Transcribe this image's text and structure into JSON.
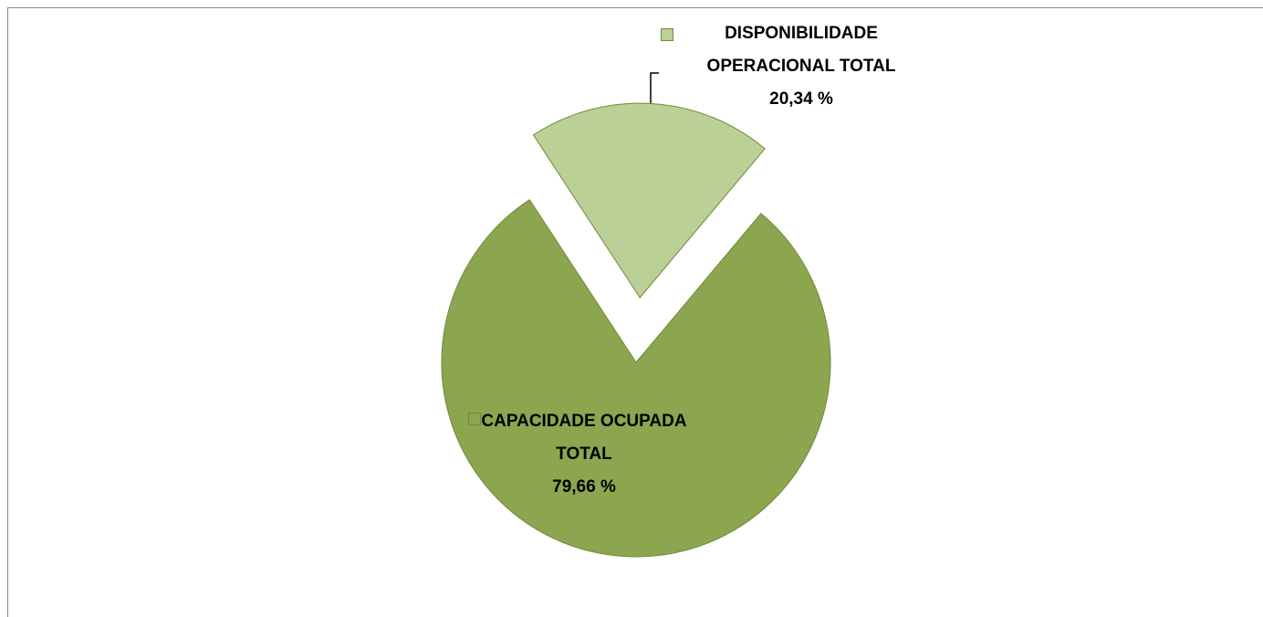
{
  "chart_data": {
    "type": "pie",
    "categories": [
      "CAPACIDADE OCUPADA TOTAL",
      "DISPONIBILIDADE OPERACIONAL TOTAL"
    ],
    "values": [
      79.66,
      20.34
    ],
    "value_labels": [
      "79,66 %",
      "20,34 %"
    ],
    "colors": [
      "#8ba64f",
      "#bbd097"
    ]
  }
}
